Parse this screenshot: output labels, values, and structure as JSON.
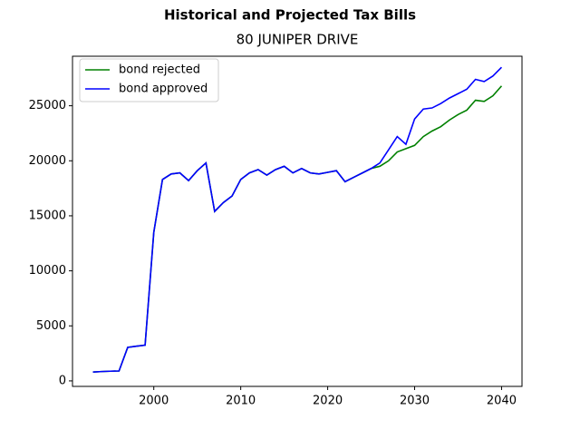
{
  "chart_data": {
    "type": "line",
    "suptitle": "Historical and Projected Tax Bills",
    "title": "80 JUNIPER DRIVE",
    "x": [
      1993,
      1994,
      1995,
      1996,
      1997,
      1998,
      1999,
      2000,
      2001,
      2002,
      2003,
      2004,
      2005,
      2006,
      2007,
      2008,
      2009,
      2010,
      2011,
      2012,
      2013,
      2014,
      2015,
      2016,
      2017,
      2018,
      2019,
      2020,
      2021,
      2022,
      2023,
      2024,
      2025,
      2026,
      2027,
      2028,
      2029,
      2030,
      2031,
      2032,
      2033,
      2034,
      2035,
      2036,
      2037,
      2038,
      2039,
      2040
    ],
    "series": [
      {
        "name": "bond rejected",
        "color": "#008000",
        "values": [
          800,
          850,
          880,
          900,
          3050,
          3150,
          3250,
          13500,
          18300,
          18800,
          18900,
          18200,
          19100,
          19800,
          15400,
          16200,
          16800,
          18300,
          18900,
          19200,
          18700,
          19200,
          19500,
          18900,
          19300,
          18900,
          18800,
          18950,
          19100,
          18100,
          18500,
          18900,
          19300,
          19500,
          20000,
          20800,
          21100,
          21400,
          22200,
          22700,
          23100,
          23700,
          24200,
          24600,
          25500,
          25400,
          25900,
          26800
        ]
      },
      {
        "name": "bond approved",
        "color": "#0000ff",
        "values": [
          800,
          850,
          880,
          900,
          3050,
          3150,
          3250,
          13500,
          18300,
          18800,
          18900,
          18200,
          19100,
          19800,
          15400,
          16200,
          16800,
          18300,
          18900,
          19200,
          18700,
          19200,
          19500,
          18900,
          19300,
          18900,
          18800,
          18950,
          19100,
          18100,
          18500,
          18900,
          19300,
          19800,
          21000,
          22200,
          21500,
          23800,
          24700,
          24800,
          25200,
          25700,
          26100,
          26500,
          27400,
          27200,
          27700,
          28500
        ]
      }
    ],
    "xlim": [
      1990.65,
      2042.35
    ],
    "xticks": [
      2000,
      2010,
      2020,
      2030,
      2040
    ],
    "ylim": [
      -500,
      29500
    ],
    "yticks": [
      0,
      5000,
      10000,
      15000,
      20000,
      25000
    ],
    "legend": "upper left"
  }
}
